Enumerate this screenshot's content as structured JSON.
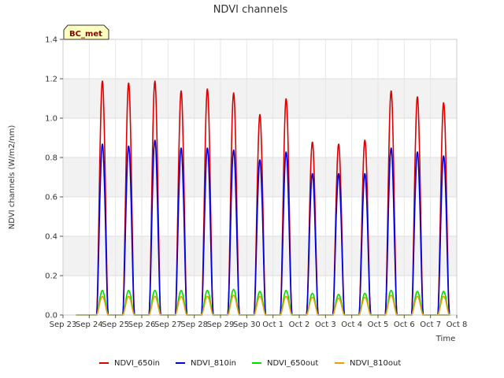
{
  "chart_data": {
    "type": "line",
    "title": "NDVI channels",
    "xlabel": "Time",
    "ylabel": "NDVI channels (W/m2/nm)",
    "ylim": [
      0,
      1.4
    ],
    "yticks": [
      "0.0",
      "0.2",
      "0.4",
      "0.6",
      "0.8",
      "1.0",
      "1.2",
      "1.4"
    ],
    "x_ticks": [
      "Sep 23",
      "Sep 24",
      "Sep 25",
      "Sep 26",
      "Sep 27",
      "Sep 28",
      "Sep 29",
      "Sep 30",
      "Oct 1",
      "Oct 2",
      "Oct 3",
      "Oct 4",
      "Oct 5",
      "Oct 6",
      "Oct 7",
      "Oct 8"
    ],
    "x_range_days": [
      0,
      15
    ],
    "badge": "BC_met",
    "grid": true,
    "legend_position": "bottom",
    "day_peak_fraction": 0.5,
    "series": [
      {
        "name": "NDVI_650in",
        "color": "#dd0000",
        "daily_peaks": [
          1.19,
          1.18,
          1.19,
          1.14,
          1.15,
          1.13,
          1.02,
          1.1,
          0.88,
          0.87,
          0.89,
          1.14,
          1.11,
          1.08
        ]
      },
      {
        "name": "NDVI_810in",
        "color": "#0000dd",
        "daily_peaks": [
          0.87,
          0.86,
          0.89,
          0.85,
          0.85,
          0.84,
          0.79,
          0.83,
          0.72,
          0.72,
          0.72,
          0.85,
          0.83,
          0.81
        ]
      },
      {
        "name": "NDVI_650out",
        "color": "#00dd00",
        "daily_peaks": [
          0.125,
          0.125,
          0.125,
          0.125,
          0.125,
          0.13,
          0.12,
          0.125,
          0.11,
          0.105,
          0.11,
          0.125,
          0.12,
          0.12
        ]
      },
      {
        "name": "NDVI_810out",
        "color": "#e6a000",
        "daily_peaks": [
          0.095,
          0.095,
          0.095,
          0.095,
          0.095,
          0.1,
          0.095,
          0.095,
          0.09,
          0.085,
          0.09,
          0.1,
          0.095,
          0.095
        ]
      }
    ]
  }
}
